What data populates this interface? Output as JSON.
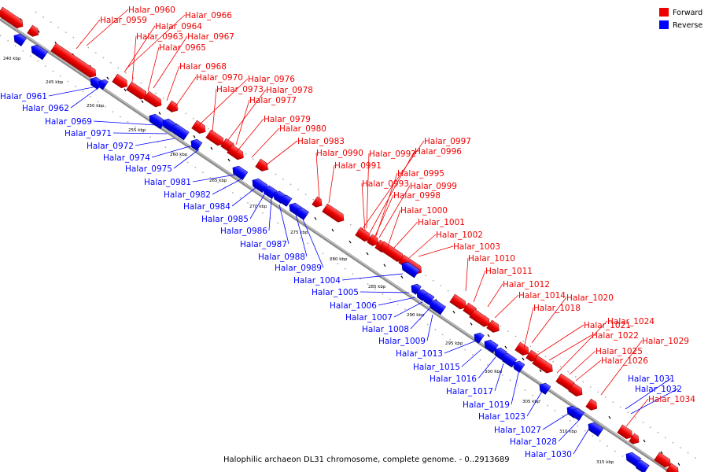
{
  "caption": "Halophilic archaeon DL31 chromosome, complete genome. - 0..2913689",
  "legend": [
    {
      "label": "Forward",
      "color": "#ee0000"
    },
    {
      "label": "Reverse",
      "color": "#0000ff"
    }
  ],
  "colors": {
    "forward": "#ee0000",
    "reverse": "#0000ff",
    "backbone": "#888888"
  },
  "scale_ticks": [
    "240 kbp",
    "245 kbp",
    "250 kbp",
    "255 kbp",
    "260 kbp",
    "265 kbp",
    "270 kbp",
    "275 kbp",
    "280 kbp",
    "285 kbp",
    "290 kbp",
    "295 kbp",
    "300 kbp",
    "305 kbp",
    "310 kbp",
    "315 kbp"
  ],
  "forward_genes": [
    "Halar_0960",
    "Halar_0959",
    "Halar_0966",
    "Halar_0964",
    "Halar_0963",
    "Halar_0967",
    "Halar_0965",
    "Halar_0968",
    "Halar_0970",
    "Halar_0976",
    "Halar_0973",
    "Halar_0978",
    "Halar_0977",
    "Halar_0979",
    "Halar_0980",
    "Halar_0983",
    "Halar_0997",
    "Halar_0990",
    "Halar_0992",
    "Halar_0996",
    "Halar_0991",
    "Halar_0995",
    "Halar_0993",
    "Halar_0999",
    "Halar_0998",
    "Halar_1000",
    "Halar_1001",
    "Halar_1002",
    "Halar_1003",
    "Halar_1010",
    "Halar_1011",
    "Halar_1012",
    "Halar_1014",
    "Halar_1020",
    "Halar_1018",
    "Halar_1024",
    "Halar_1021",
    "Halar_1022",
    "Halar_1029",
    "Halar_1025",
    "Halar_1026",
    "Halar_1034"
  ],
  "reverse_genes": [
    "Halar_0961",
    "Halar_0962",
    "Halar_0969",
    "Halar_0971",
    "Halar_0972",
    "Halar_0974",
    "Halar_0975",
    "Halar_0981",
    "Halar_0982",
    "Halar_0984",
    "Halar_0985",
    "Halar_0986",
    "Halar_0987",
    "Halar_0988",
    "Halar_0989",
    "Halar_1004",
    "Halar_1005",
    "Halar_1006",
    "Halar_1007",
    "Halar_1008",
    "Halar_1009",
    "Halar_1013",
    "Halar_1015",
    "Halar_1016",
    "Halar_1017",
    "Halar_1019",
    "Halar_1023",
    "Halar_1027",
    "Halar_1028",
    "Halar_1030",
    "Halar_1031",
    "Halar_1032"
  ]
}
